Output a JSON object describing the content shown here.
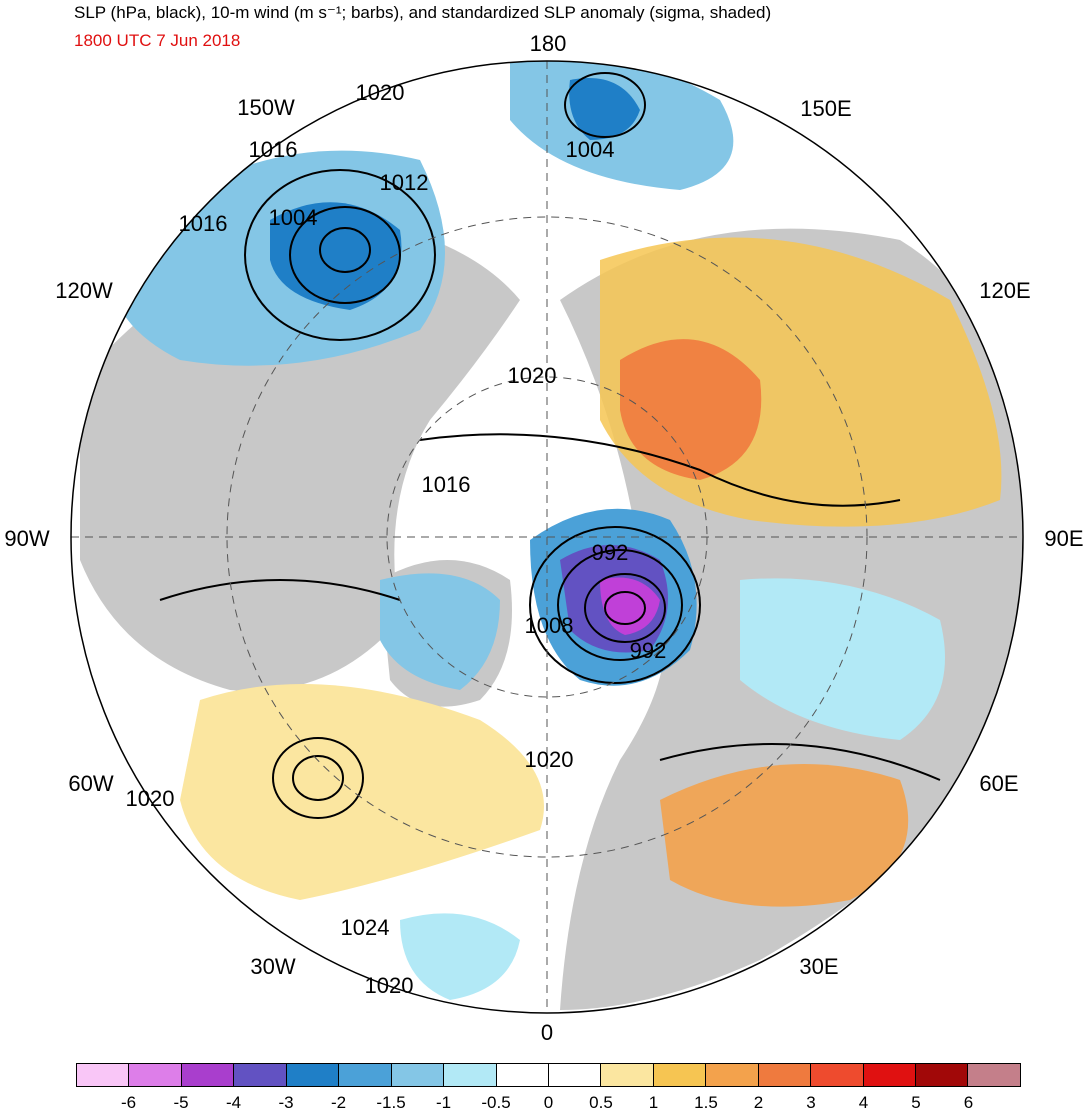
{
  "header": {
    "title": "SLP (hPa, black), 10-m wind (m s⁻¹; barbs), and standardized SLP anomaly (sigma, shaded)",
    "valid_time": "1800 UTC 7 Jun 2018"
  },
  "longitude_labels": [
    "180",
    "150E",
    "120E",
    "90E",
    "60E",
    "30E",
    "0",
    "30W",
    "60W",
    "90W",
    "120W",
    "150W"
  ],
  "isobar_labels": [
    "1020",
    "1004",
    "1016",
    "1012",
    "1016",
    "1004",
    "1020",
    "1016",
    "992",
    "1008",
    "992",
    "1020",
    "1020",
    "1024",
    "1020"
  ],
  "colorbar": {
    "ticks": [
      "-6",
      "-5",
      "-4",
      "-3",
      "-2",
      "-1.5",
      "-1",
      "-0.5",
      "0",
      "0.5",
      "1",
      "1.5",
      "2",
      "3",
      "4",
      "5",
      "6"
    ],
    "colors": [
      "#f9c6f7",
      "#dd7ee9",
      "#a93ecd",
      "#6252c2",
      "#1f7fc7",
      "#4ba1d8",
      "#84c6e6",
      "#b2e9f6",
      "#ffffff",
      "#ffffff",
      "#fbe6a0",
      "#f6c552",
      "#f3a24c",
      "#ef7a3e",
      "#ee4b2e",
      "#e01111",
      "#a10808",
      "#c47f8a"
    ]
  },
  "map_colors": {
    "land": "#c8c8c8",
    "ocean": "#ffffff",
    "isobar": "#000000",
    "anomaly_min": "#c040d8",
    "anomaly_low": "#6a5ac8"
  }
}
